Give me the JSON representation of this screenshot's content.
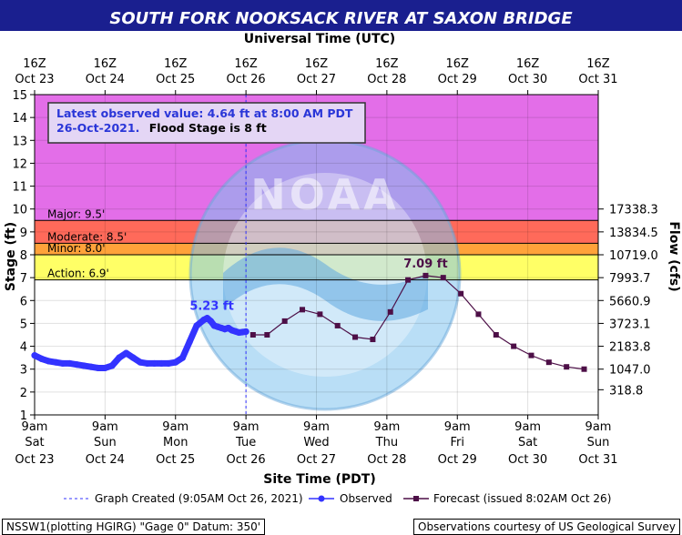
{
  "title": "SOUTH FORK NOOKSACK RIVER AT SAXON BRIDGE",
  "top_axis_title": "Universal Time (UTC)",
  "top_ticks": [
    [
      "16Z",
      "Oct 23"
    ],
    [
      "16Z",
      "Oct 24"
    ],
    [
      "16Z",
      "Oct 25"
    ],
    [
      "16Z",
      "Oct 26"
    ],
    [
      "16Z",
      "Oct 27"
    ],
    [
      "16Z",
      "Oct 28"
    ],
    [
      "16Z",
      "Oct 29"
    ],
    [
      "16Z",
      "Oct 30"
    ],
    [
      "16Z",
      "Oct 31"
    ]
  ],
  "bottom_ticks": [
    [
      "9am",
      "Sat",
      "Oct 23"
    ],
    [
      "9am",
      "Sun",
      "Oct 24"
    ],
    [
      "9am",
      "Mon",
      "Oct 25"
    ],
    [
      "9am",
      "Tue",
      "Oct 26"
    ],
    [
      "9am",
      "Wed",
      "Oct 27"
    ],
    [
      "9am",
      "Thu",
      "Oct 28"
    ],
    [
      "9am",
      "Fri",
      "Oct 29"
    ],
    [
      "9am",
      "Sat",
      "Oct 30"
    ],
    [
      "9am",
      "Sun",
      "Oct 31"
    ]
  ],
  "bottom_axis_title": "Site Time (PDT)",
  "y_axis_title": "Stage (ft)",
  "y2_axis_title": "Flow (cfs)",
  "info_box": {
    "line1": "Latest observed value: 4.64 ft at 8:00 AM PDT",
    "line2a": "26-Oct-2021.",
    "line2b": "Flood Stage is 8 ft"
  },
  "legend": {
    "created": "Graph Created (9:05AM Oct 26, 2021)",
    "observed": "Observed",
    "forecast": "Forecast (issued 8:02AM Oct 26)"
  },
  "footer_left": "NSSW1(plotting HGIRG) \"Gage 0\" Datum: 350'",
  "footer_right": "Observations courtesy of US Geological Survey",
  "watermark": "NATIONAL OCEANIC AND ATMOSPHERIC ADMINISTRATION · U.S. DEPARTMENT OF COMMERCE · NOAA",
  "chart_data": {
    "type": "line",
    "x_unit": "days since 9am Sat Oct 23 (PDT)",
    "xlim": [
      0,
      8
    ],
    "ylim": [
      1,
      15
    ],
    "y_ticks": [
      1,
      2,
      3,
      4,
      5,
      6,
      7,
      8,
      9,
      10,
      11,
      12,
      13,
      14,
      15
    ],
    "flood_categories": [
      {
        "name": "Action",
        "label": "Action: 6.9'",
        "value": 6.9,
        "color": "#ffff66"
      },
      {
        "name": "Minor",
        "label": "Minor: 8.0'",
        "value": 8.0,
        "color": "#ffa23a"
      },
      {
        "name": "Moderate",
        "label": "Moderate: 8.5'",
        "value": 8.5,
        "color": "#ff6a5a"
      },
      {
        "name": "Major",
        "label": "Major: 9.5'",
        "value": 9.5,
        "color": "#e36ee8"
      }
    ],
    "flow_ticks": [
      {
        "stage": 2.1,
        "label": "318.8"
      },
      {
        "stage": 3.0,
        "label": "1047.0"
      },
      {
        "stage": 4.0,
        "label": "2183.8"
      },
      {
        "stage": 5.0,
        "label": "3723.1"
      },
      {
        "stage": 6.0,
        "label": "5660.9"
      },
      {
        "stage": 7.0,
        "label": "7993.7"
      },
      {
        "stage": 8.0,
        "label": "10719.0"
      },
      {
        "stage": 9.0,
        "label": "13834.5"
      },
      {
        "stage": 10.0,
        "label": "17338.3"
      }
    ],
    "now_x": 3.0,
    "series": [
      {
        "name": "Observed",
        "color": "#3333ff",
        "x": [
          0,
          0.1,
          0.2,
          0.3,
          0.4,
          0.5,
          0.6,
          0.7,
          0.8,
          0.9,
          1.0,
          1.1,
          1.2,
          1.3,
          1.4,
          1.5,
          1.6,
          1.7,
          1.8,
          1.9,
          2.0,
          2.1,
          2.2,
          2.3,
          2.4,
          2.45,
          2.5,
          2.55,
          2.6,
          2.65,
          2.7,
          2.75,
          2.8,
          2.85,
          2.9,
          2.95,
          3.0
        ],
        "y": [
          3.6,
          3.45,
          3.35,
          3.3,
          3.25,
          3.25,
          3.2,
          3.15,
          3.1,
          3.05,
          3.05,
          3.15,
          3.5,
          3.7,
          3.5,
          3.3,
          3.25,
          3.25,
          3.25,
          3.25,
          3.3,
          3.5,
          4.2,
          4.9,
          5.15,
          5.23,
          5.1,
          4.9,
          4.85,
          4.8,
          4.75,
          4.8,
          4.7,
          4.65,
          4.6,
          4.62,
          4.64
        ]
      },
      {
        "name": "Forecast",
        "color": "#4d0f47",
        "x": [
          3.1,
          3.3,
          3.55,
          3.8,
          4.05,
          4.3,
          4.55,
          4.8,
          5.05,
          5.3,
          5.55,
          5.8,
          6.05,
          6.3,
          6.55,
          6.8,
          7.05,
          7.3,
          7.55,
          7.8
        ],
        "y": [
          4.5,
          4.5,
          5.1,
          5.6,
          5.4,
          4.9,
          4.4,
          4.3,
          5.5,
          6.9,
          7.09,
          7.0,
          6.3,
          5.4,
          4.5,
          4.0,
          3.6,
          3.3,
          3.1,
          3.0
        ]
      }
    ],
    "annotations": [
      {
        "text": "5.23 ft",
        "x": 2.45,
        "y": 5.23,
        "color": "#3333ff"
      },
      {
        "text": "7.09 ft",
        "x": 5.55,
        "y": 7.09,
        "color": "#4d0f47"
      }
    ]
  }
}
